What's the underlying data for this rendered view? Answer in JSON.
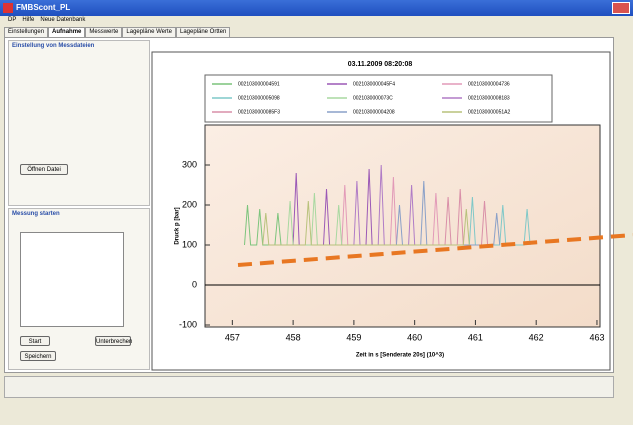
{
  "window": {
    "title": "FMBScont_PL"
  },
  "menu": [
    "DP",
    "Hilfe",
    "Neue Datenbank"
  ],
  "tabs": [
    "Einstellungen",
    "Aufnahme",
    "Messwerte",
    "Lagepläne Werte",
    "Lagepläne Ortten"
  ],
  "left_panel": {
    "group1_title": "Einstellung von Messdateien",
    "open_button": "Öffnen Datei",
    "group2_title": "Messung starten",
    "start_button": "Start",
    "stop_button": "Unterbrechen",
    "save_button": "Speichern"
  },
  "chart_data": {
    "type": "line",
    "title": "03.11.2009 08:20:08",
    "x_label": "Zeit in s [Senderate 20s] (10^3)",
    "y_label": "Druck p [bar]",
    "xlim": [
      456.55,
      463.05
    ],
    "xticks": [
      457,
      458,
      459,
      460,
      461,
      462,
      463
    ],
    "ylim": [
      -100,
      400
    ],
    "yticks": [
      -100,
      0,
      100,
      200,
      300
    ],
    "series": [
      {
        "name": "002103000004591",
        "color": "#7cc47c",
        "x": [
          457.2,
          457.25,
          457.3,
          457.4,
          457.45,
          457.5,
          457.7,
          457.75,
          457.8
        ],
        "values": [
          100,
          200,
          100,
          100,
          190,
          100,
          100,
          180,
          100
        ]
      },
      {
        "name": "0021030000045F4",
        "color": "#9b59b6",
        "x": [
          458.0,
          458.05,
          458.1,
          458.5,
          458.55,
          458.6,
          459.2,
          459.25,
          459.3
        ],
        "values": [
          100,
          280,
          100,
          100,
          240,
          100,
          100,
          290,
          100
        ]
      },
      {
        "name": "002103000004736",
        "color": "#e29ab8",
        "x": [
          458.8,
          458.85,
          458.9,
          459.6,
          459.65,
          459.7,
          460.3,
          460.35,
          460.4
        ],
        "values": [
          100,
          250,
          100,
          100,
          270,
          100,
          100,
          230,
          100
        ]
      },
      {
        "name": "002103000005098",
        "color": "#7fc8c8",
        "x": [
          460.9,
          460.95,
          461.0,
          461.4,
          461.45,
          461.5,
          461.8,
          461.85,
          461.9
        ],
        "values": [
          100,
          220,
          100,
          100,
          200,
          100,
          100,
          190,
          100
        ]
      },
      {
        "name": "0021030000073C",
        "color": "#a8d8a0",
        "x": [
          457.9,
          457.95,
          458.0,
          458.3,
          458.35,
          458.4,
          458.7,
          458.75,
          458.8
        ],
        "values": [
          100,
          210,
          100,
          100,
          230,
          100,
          100,
          200,
          100
        ]
      },
      {
        "name": "002103000008183",
        "color": "#b07cc6",
        "x": [
          459.0,
          459.05,
          459.1,
          459.4,
          459.45,
          459.5,
          459.9,
          459.95,
          460.0
        ],
        "values": [
          100,
          260,
          100,
          100,
          300,
          100,
          100,
          250,
          100
        ]
      },
      {
        "name": "0021030000085F3",
        "color": "#d98fa8",
        "x": [
          460.5,
          460.55,
          460.6,
          460.7,
          460.75,
          460.8,
          461.1,
          461.15,
          461.2
        ],
        "values": [
          100,
          220,
          100,
          100,
          240,
          100,
          100,
          210,
          100
        ]
      },
      {
        "name": "002103000004208",
        "color": "#8aa0c8",
        "x": [
          459.7,
          459.75,
          459.8,
          460.1,
          460.15,
          460.2,
          461.3,
          461.35,
          461.4
        ],
        "values": [
          100,
          200,
          100,
          100,
          260,
          100,
          100,
          180,
          100
        ]
      },
      {
        "name": "0021030000051A2",
        "color": "#b8c27c",
        "x": [
          457.5,
          457.55,
          457.6,
          458.2,
          458.25,
          458.3,
          460.8,
          460.85,
          460.9
        ],
        "values": [
          100,
          180,
          100,
          100,
          210,
          100,
          100,
          190,
          100
        ]
      }
    ]
  }
}
